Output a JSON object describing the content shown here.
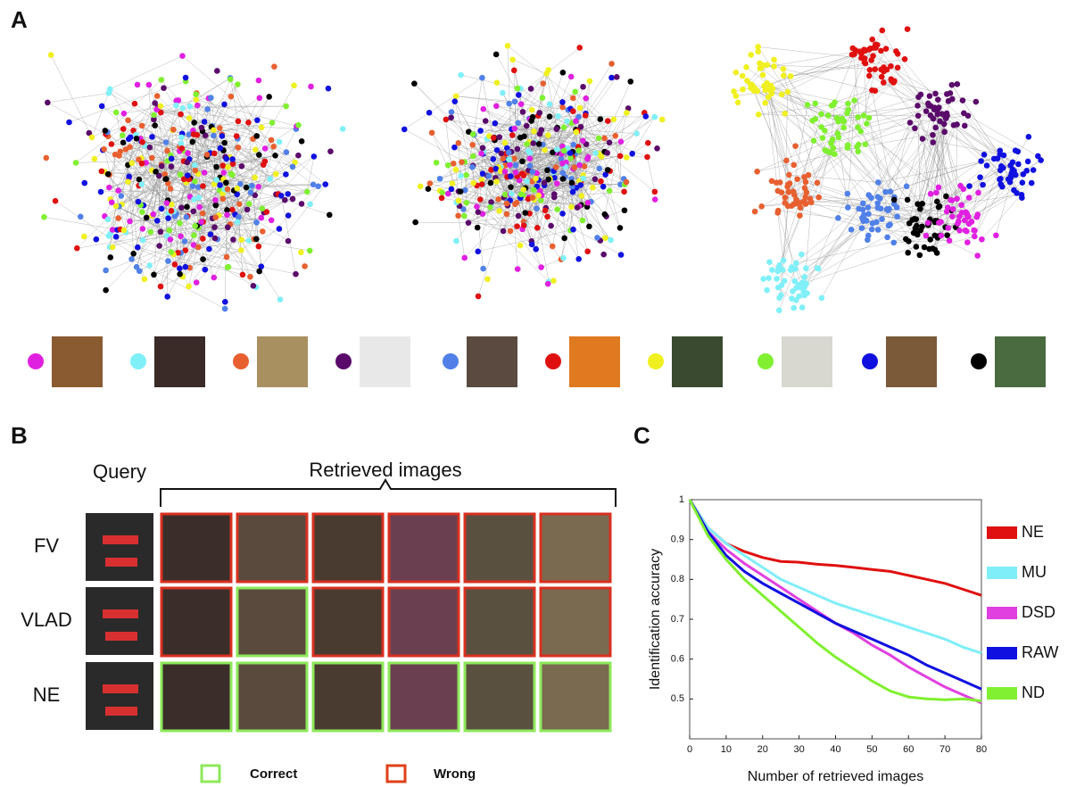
{
  "panels": {
    "a": {
      "label": "A"
    },
    "b": {
      "label": "B",
      "query_label": "Query",
      "retrieved_label": "Retrieved images",
      "rows": [
        "FV",
        "VLAD",
        "NE"
      ],
      "legend": [
        "Correct",
        "Wrong"
      ]
    },
    "c": {
      "label": "C"
    }
  },
  "chart_data": {
    "type": "line",
    "xlabel": "Number of retrieved images",
    "ylabel": "Identification accuracy",
    "x": [
      0,
      5,
      10,
      15,
      20,
      25,
      30,
      35,
      40,
      45,
      50,
      55,
      60,
      65,
      70,
      75,
      80
    ],
    "xlim": [
      0,
      80
    ],
    "xticks": [
      0,
      10,
      20,
      30,
      40,
      50,
      60,
      70,
      80
    ],
    "ylim": [
      0.4,
      1
    ],
    "yticks": [
      0.5,
      0.6,
      0.7,
      0.8,
      0.9,
      1
    ],
    "series": [
      {
        "name": "NE",
        "color": "#e01010",
        "values": [
          1,
          0.93,
          0.89,
          0.87,
          0.855,
          0.845,
          0.843,
          0.838,
          0.835,
          0.83,
          0.825,
          0.82,
          0.81,
          0.8,
          0.79,
          0.775,
          0.76
        ]
      },
      {
        "name": "MU",
        "color": "#80eef8",
        "values": [
          1,
          0.93,
          0.89,
          0.86,
          0.83,
          0.8,
          0.78,
          0.76,
          0.74,
          0.725,
          0.71,
          0.695,
          0.68,
          0.665,
          0.65,
          0.63,
          0.615
        ]
      },
      {
        "name": "DSD",
        "color": "#e040e0",
        "values": [
          1,
          0.92,
          0.875,
          0.84,
          0.81,
          0.78,
          0.75,
          0.72,
          0.69,
          0.665,
          0.635,
          0.61,
          0.58,
          0.555,
          0.53,
          0.51,
          0.49
        ]
      },
      {
        "name": "RAW",
        "color": "#1010e0",
        "values": [
          1,
          0.92,
          0.86,
          0.82,
          0.79,
          0.765,
          0.74,
          0.715,
          0.69,
          0.67,
          0.65,
          0.63,
          0.61,
          0.585,
          0.565,
          0.545,
          0.525
        ]
      },
      {
        "name": "ND",
        "color": "#80f030",
        "values": [
          1,
          0.91,
          0.85,
          0.8,
          0.76,
          0.72,
          0.68,
          0.64,
          0.605,
          0.575,
          0.545,
          0.52,
          0.505,
          0.5,
          0.498,
          0.5,
          0.495
        ]
      }
    ]
  }
}
